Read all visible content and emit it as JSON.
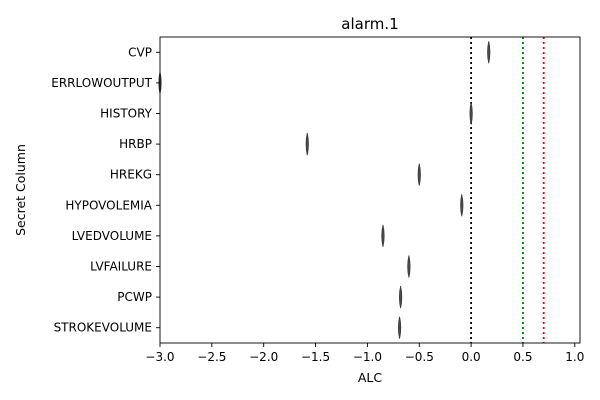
{
  "chart_data": {
    "type": "violin",
    "title": "alarm.1",
    "xlabel": "ALC",
    "ylabel": "Secret Column",
    "xlim": [
      -3.0,
      1.05
    ],
    "xticks": [
      -3.0,
      -2.5,
      -2.0,
      -1.5,
      -1.0,
      -0.5,
      0.0,
      0.5,
      1.0
    ],
    "xtick_labels": [
      "−3.0",
      "−2.5",
      "−2.0",
      "−1.5",
      "−1.0",
      "−0.5",
      "0.0",
      "0.5",
      "1.0"
    ],
    "categories": [
      "CVP",
      "ERRLOWOUTPUT",
      "HISTORY",
      "HRBP",
      "HREKG",
      "HYPOVOLEMIA",
      "LVEDVOLUME",
      "LVFAILURE",
      "PCWP",
      "STROKEVOLUME"
    ],
    "values": [
      0.17,
      -3.0,
      0.0,
      -1.58,
      -0.5,
      -0.09,
      -0.85,
      -0.6,
      -0.68,
      -0.69
    ],
    "grid": false,
    "reference_lines": [
      {
        "x": 0.0,
        "color": "#000000",
        "style": "dotted"
      },
      {
        "x": 0.5,
        "color": "#008000",
        "style": "dotted"
      },
      {
        "x": 0.7,
        "color": "#ff0000",
        "style": "dotted"
      }
    ],
    "violin_color": "#4c4c4c"
  }
}
